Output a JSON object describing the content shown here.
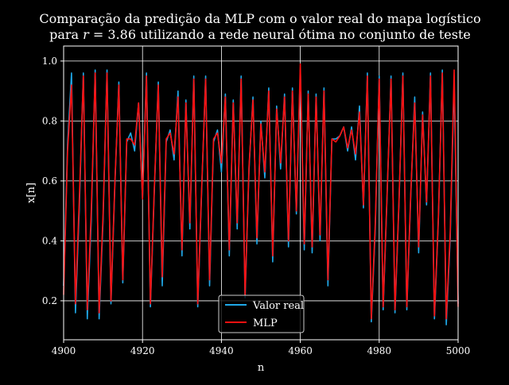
{
  "chart_data": {
    "type": "line",
    "title_line1": "Comparação da predição da MLP com o valor real do mapa logístico",
    "title_line2_pre": "para ",
    "title_line2_var": "r",
    "title_line2_post": " = 3.86 utilizando a rede neural ótima no conjunto de teste",
    "xlabel": "n",
    "ylabel": "x[n]",
    "xlim": [
      4900,
      5000
    ],
    "ylim": [
      0.07,
      1.05
    ],
    "xticks": [
      "4900",
      "4920",
      "4940",
      "4960",
      "4980",
      "5000"
    ],
    "yticks": [
      "0.2",
      "0.4",
      "0.6",
      "0.8",
      "1.0"
    ],
    "grid": true,
    "legend_position": "bottom-center",
    "x_start": 4900,
    "series": [
      {
        "name": "Valor real",
        "color": "#1fa8e8",
        "values": [
          0.25,
          0.72,
          0.96,
          0.16,
          0.52,
          0.96,
          0.14,
          0.47,
          0.97,
          0.14,
          0.47,
          0.97,
          0.19,
          0.59,
          0.93,
          0.26,
          0.73,
          0.76,
          0.7,
          0.86,
          0.54,
          0.96,
          0.18,
          0.57,
          0.93,
          0.25,
          0.73,
          0.77,
          0.67,
          0.9,
          0.35,
          0.87,
          0.44,
          0.95,
          0.18,
          0.57,
          0.95,
          0.25,
          0.73,
          0.77,
          0.63,
          0.89,
          0.35,
          0.87,
          0.44,
          0.95,
          0.21,
          0.64,
          0.88,
          0.39,
          0.8,
          0.61,
          0.91,
          0.33,
          0.85,
          0.64,
          0.89,
          0.38,
          0.91,
          0.49,
          0.97,
          0.37,
          0.9,
          0.36,
          0.89,
          0.4,
          0.91,
          0.25,
          0.74,
          0.74,
          0.75,
          0.78,
          0.7,
          0.78,
          0.67,
          0.85,
          0.51,
          0.96,
          0.13,
          0.44,
          0.95,
          0.17,
          0.55,
          0.95,
          0.16,
          0.52,
          0.96,
          0.17,
          0.55,
          0.88,
          0.36,
          0.83,
          0.52,
          0.96,
          0.14,
          0.47,
          0.97,
          0.12,
          0.41,
          0.93,
          0.19
        ]
      },
      {
        "name": "MLP",
        "color": "#ff1010",
        "values": [
          0.22,
          0.7,
          0.92,
          0.19,
          0.55,
          0.95,
          0.17,
          0.5,
          0.96,
          0.16,
          0.49,
          0.96,
          0.2,
          0.6,
          0.92,
          0.27,
          0.74,
          0.74,
          0.72,
          0.86,
          0.54,
          0.95,
          0.19,
          0.58,
          0.92,
          0.28,
          0.74,
          0.76,
          0.69,
          0.88,
          0.37,
          0.86,
          0.46,
          0.94,
          0.19,
          0.58,
          0.94,
          0.27,
          0.74,
          0.76,
          0.66,
          0.88,
          0.37,
          0.86,
          0.46,
          0.94,
          0.22,
          0.65,
          0.87,
          0.41,
          0.79,
          0.63,
          0.9,
          0.35,
          0.84,
          0.66,
          0.88,
          0.4,
          0.9,
          0.5,
          0.99,
          0.39,
          0.89,
          0.38,
          0.88,
          0.42,
          0.9,
          0.27,
          0.74,
          0.73,
          0.75,
          0.78,
          0.71,
          0.77,
          0.69,
          0.83,
          0.52,
          0.95,
          0.14,
          0.46,
          0.94,
          0.18,
          0.56,
          0.94,
          0.17,
          0.53,
          0.95,
          0.18,
          0.56,
          0.86,
          0.38,
          0.82,
          0.53,
          0.95,
          0.15,
          0.48,
          0.96,
          0.14,
          0.43,
          0.97,
          0.18
        ]
      }
    ]
  }
}
